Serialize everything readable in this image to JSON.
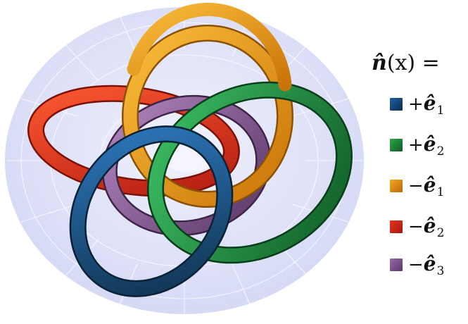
{
  "legend": {
    "title_symbol": "n̂",
    "title_argument": "(x) =",
    "items": [
      {
        "sign": "+",
        "vector": "ê",
        "index": "1",
        "color": "#1f5fa8",
        "dark": "#0e2f4a"
      },
      {
        "sign": "+",
        "vector": "ê",
        "index": "2",
        "color": "#2aa84a",
        "dark": "#0f5a25"
      },
      {
        "sign": "−",
        "vector": "ê",
        "index": "1",
        "color": "#f5a623",
        "dark": "#b86a08"
      },
      {
        "sign": "−",
        "vector": "ê",
        "index": "2",
        "color": "#e8331e",
        "dark": "#a81810"
      },
      {
        "sign": "−",
        "vector": "ê",
        "index": "3",
        "color": "#9a6aa8",
        "dark": "#5a3868"
      }
    ]
  },
  "colors": {
    "torus_fill": "#d9dbf5",
    "torus_lines": "#ffffff"
  }
}
